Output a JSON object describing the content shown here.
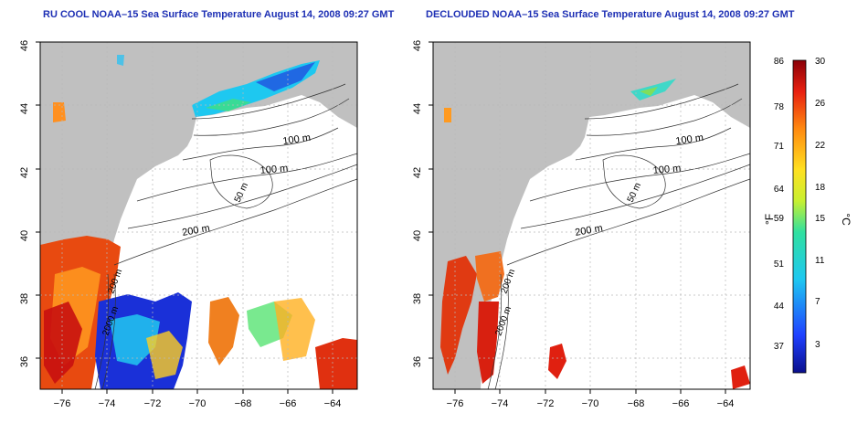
{
  "colors": {
    "title": "#1d2fb4",
    "land": "#c0c0c0",
    "background": "#ffffff",
    "frame": "#000000",
    "grid": "#b8b8b8"
  },
  "panels": [
    {
      "title": "RU COOL NOAA–15 Sea Surface Temperature August 14, 2008 09:27 GMT",
      "contour_labels": [
        "100 m",
        "100 m",
        "50 m",
        "200 m",
        "200 m",
        "2000 m"
      ]
    },
    {
      "title": "DECLOUDED NOAA–15 Sea Surface Temperature August 14, 2008 09:27 GMT",
      "contour_labels": [
        "100 m",
        "100 m",
        "50 m",
        "200 m",
        "200 m",
        "2000 m"
      ]
    }
  ],
  "axes": {
    "x_ticks": [
      "−76",
      "−74",
      "−72",
      "−70",
      "−68",
      "−66",
      "−64"
    ],
    "y_ticks": [
      "46",
      "44",
      "42",
      "40",
      "38",
      "36"
    ],
    "x_range": [
      -77,
      -63
    ],
    "y_range": [
      35,
      46
    ],
    "grid": "dotted"
  },
  "colorbar": {
    "left_unit": "°F",
    "right_unit": "°C",
    "fahrenheit_ticks": [
      "86",
      "78",
      "71",
      "64",
      "59",
      "51",
      "44",
      "37"
    ],
    "celsius_ticks": [
      "30",
      "26",
      "22",
      "18",
      "15",
      "11",
      "7",
      "3"
    ]
  }
}
